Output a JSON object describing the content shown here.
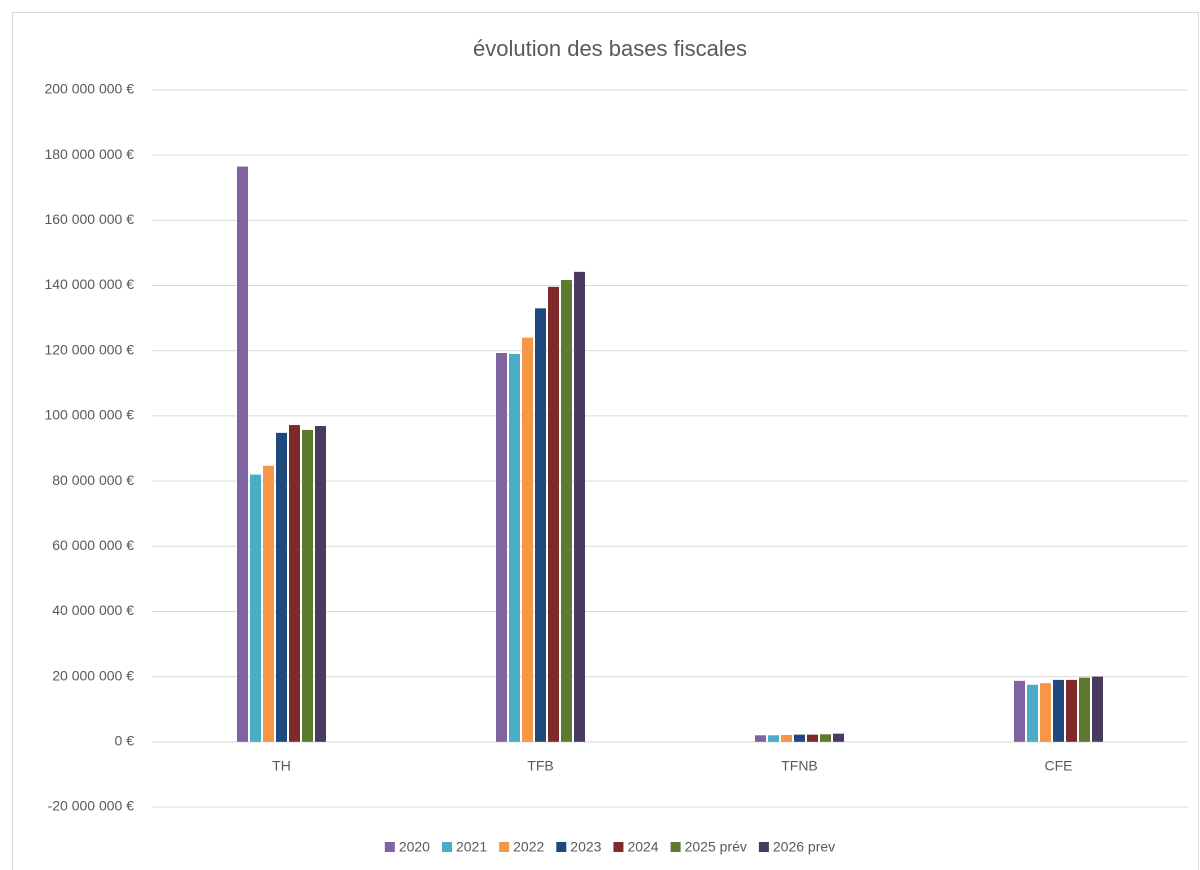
{
  "chart_data": {
    "type": "bar",
    "title": "évolution des bases fiscales",
    "categories": [
      "TH",
      "TFB",
      "TFNB",
      "CFE"
    ],
    "series": [
      {
        "name": "2020",
        "color": "#8064a2",
        "values": [
          176500000,
          119300000,
          2000000,
          18700000
        ]
      },
      {
        "name": "2021",
        "color": "#4bacc6",
        "values": [
          82000000,
          119000000,
          2000000,
          17500000
        ]
      },
      {
        "name": "2022",
        "color": "#f79646",
        "values": [
          84700000,
          124000000,
          2100000,
          18000000
        ]
      },
      {
        "name": "2023",
        "color": "#1f497d",
        "values": [
          94800000,
          133000000,
          2200000,
          19000000
        ]
      },
      {
        "name": "2024",
        "color": "#7f2a2a",
        "values": [
          97200000,
          139600000,
          2200000,
          19000000
        ]
      },
      {
        "name": "2025 prév",
        "color": "#5e7a2e",
        "values": [
          95700000,
          141700000,
          2300000,
          19700000
        ]
      },
      {
        "name": "2026 prev",
        "color": "#4b3a5f",
        "values": [
          96900000,
          144200000,
          2500000,
          20000000
        ]
      }
    ],
    "ylim": [
      -20000000,
      200000000
    ],
    "yticks": [
      {
        "value": -20000000,
        "label": "-20 000 000 €"
      },
      {
        "value": 0,
        "label": "0 €"
      },
      {
        "value": 20000000,
        "label": "20 000 000 €"
      },
      {
        "value": 40000000,
        "label": "40 000 000 €"
      },
      {
        "value": 60000000,
        "label": "60 000 000 €"
      },
      {
        "value": 80000000,
        "label": "80 000 000 €"
      },
      {
        "value": 100000000,
        "label": "100 000 000 €"
      },
      {
        "value": 120000000,
        "label": "120 000 000 €"
      },
      {
        "value": 140000000,
        "label": "140 000 000 €"
      },
      {
        "value": 160000000,
        "label": "160 000 000 €"
      },
      {
        "value": 180000000,
        "label": "180 000 000 €"
      },
      {
        "value": 200000000,
        "label": "200 000 000 €"
      }
    ],
    "grid": true,
    "legend": "bottom"
  }
}
